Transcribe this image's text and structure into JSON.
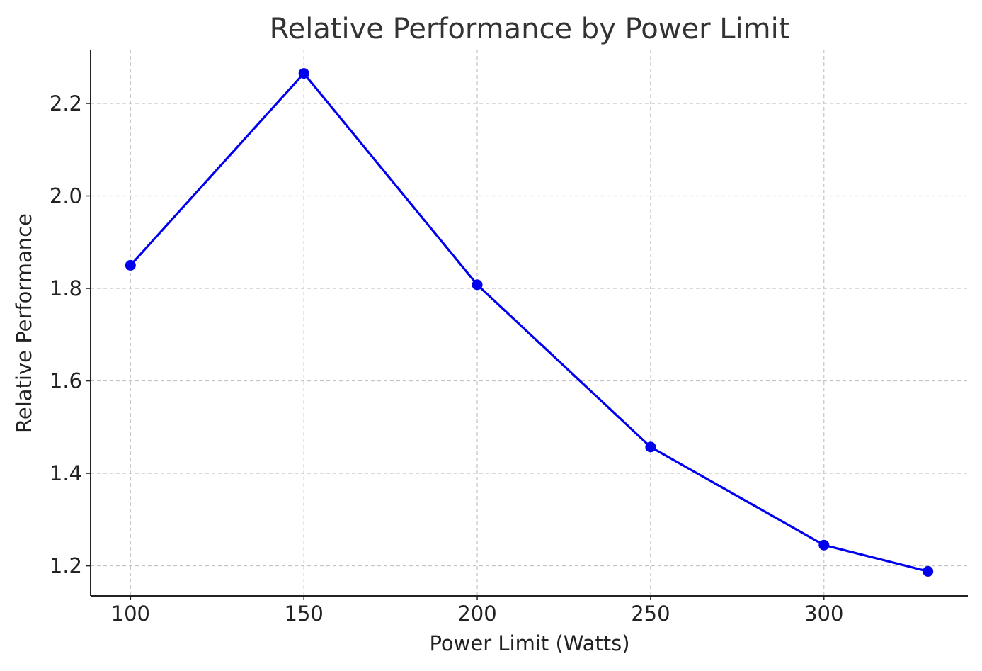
{
  "chart_data": {
    "type": "line",
    "title": "Relative Performance by Power Limit",
    "xlabel": "Power Limit (Watts)",
    "ylabel": "Relative Performance",
    "x": [
      100,
      150,
      200,
      250,
      300,
      330
    ],
    "series": [
      {
        "values": [
          1.85,
          2.265,
          1.808,
          1.457,
          1.245,
          1.188
        ]
      }
    ],
    "xlim": [
      88.5,
      341.5
    ],
    "ylim": [
      1.135,
      2.3165
    ],
    "xticks": [
      100,
      150,
      200,
      250,
      300
    ],
    "xtick_labels": [
      "100",
      "150",
      "200",
      "250",
      "300"
    ],
    "yticks": [
      1.2,
      1.4,
      1.6,
      1.8,
      2.0,
      2.2
    ],
    "ytick_labels": [
      "1.2",
      "1.4",
      "1.6",
      "1.8",
      "2.0",
      "2.2"
    ],
    "grid": true,
    "line_color": "#0000ee",
    "marker": "circle"
  }
}
